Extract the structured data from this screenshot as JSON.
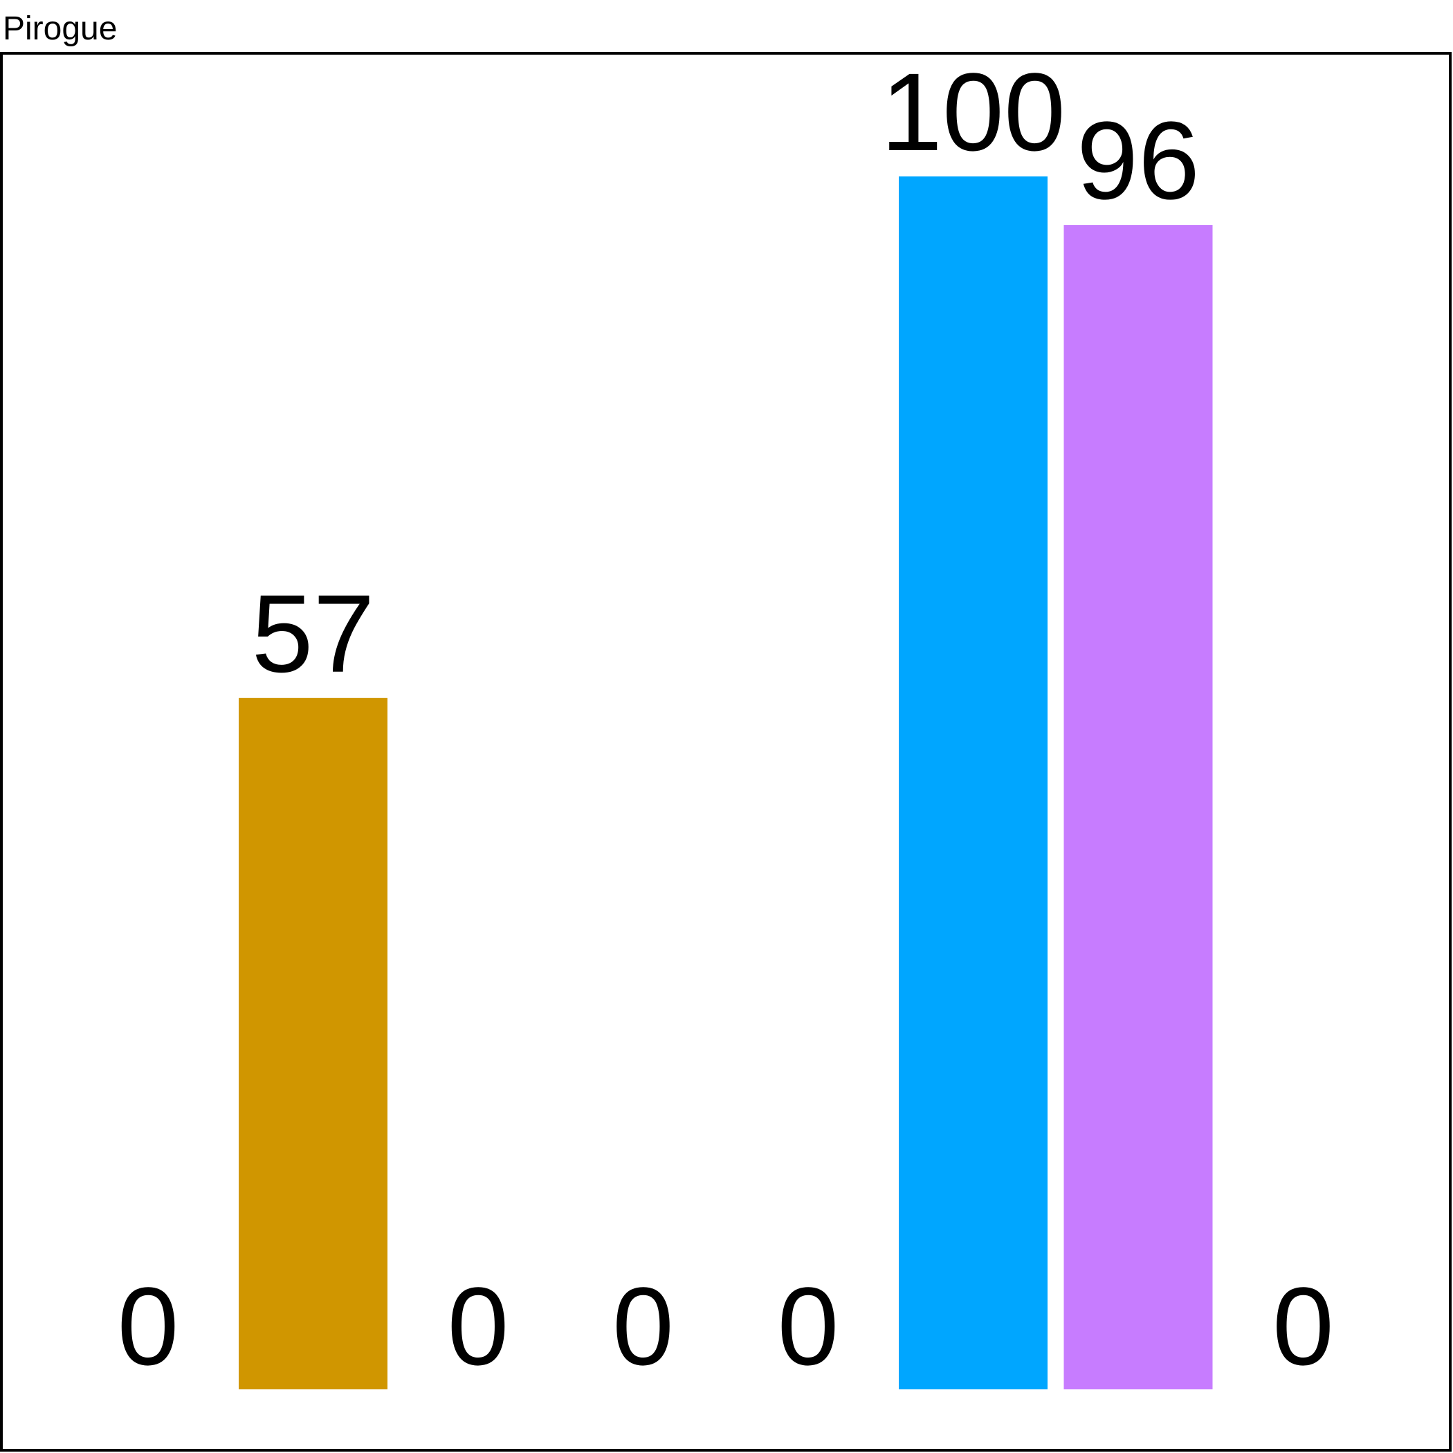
{
  "chart_data": {
    "type": "bar",
    "title": "Pirogue",
    "xlabel": "",
    "ylabel": "",
    "ylim": [
      0,
      100
    ],
    "grid": false,
    "legend": "none",
    "categories": [
      "",
      "",
      "",
      "",
      "",
      "",
      "",
      ""
    ],
    "values": [
      0,
      57,
      0,
      0,
      0,
      100,
      96,
      0
    ],
    "data_labels": [
      "0",
      "57",
      "0",
      "0",
      "0",
      "100",
      "96",
      "0"
    ],
    "colors": [
      "#d09600",
      "#d09600",
      "#d09600",
      "#d09600",
      "#d09600",
      "#00a6ff",
      "#c77cff",
      "#d09600"
    ]
  }
}
